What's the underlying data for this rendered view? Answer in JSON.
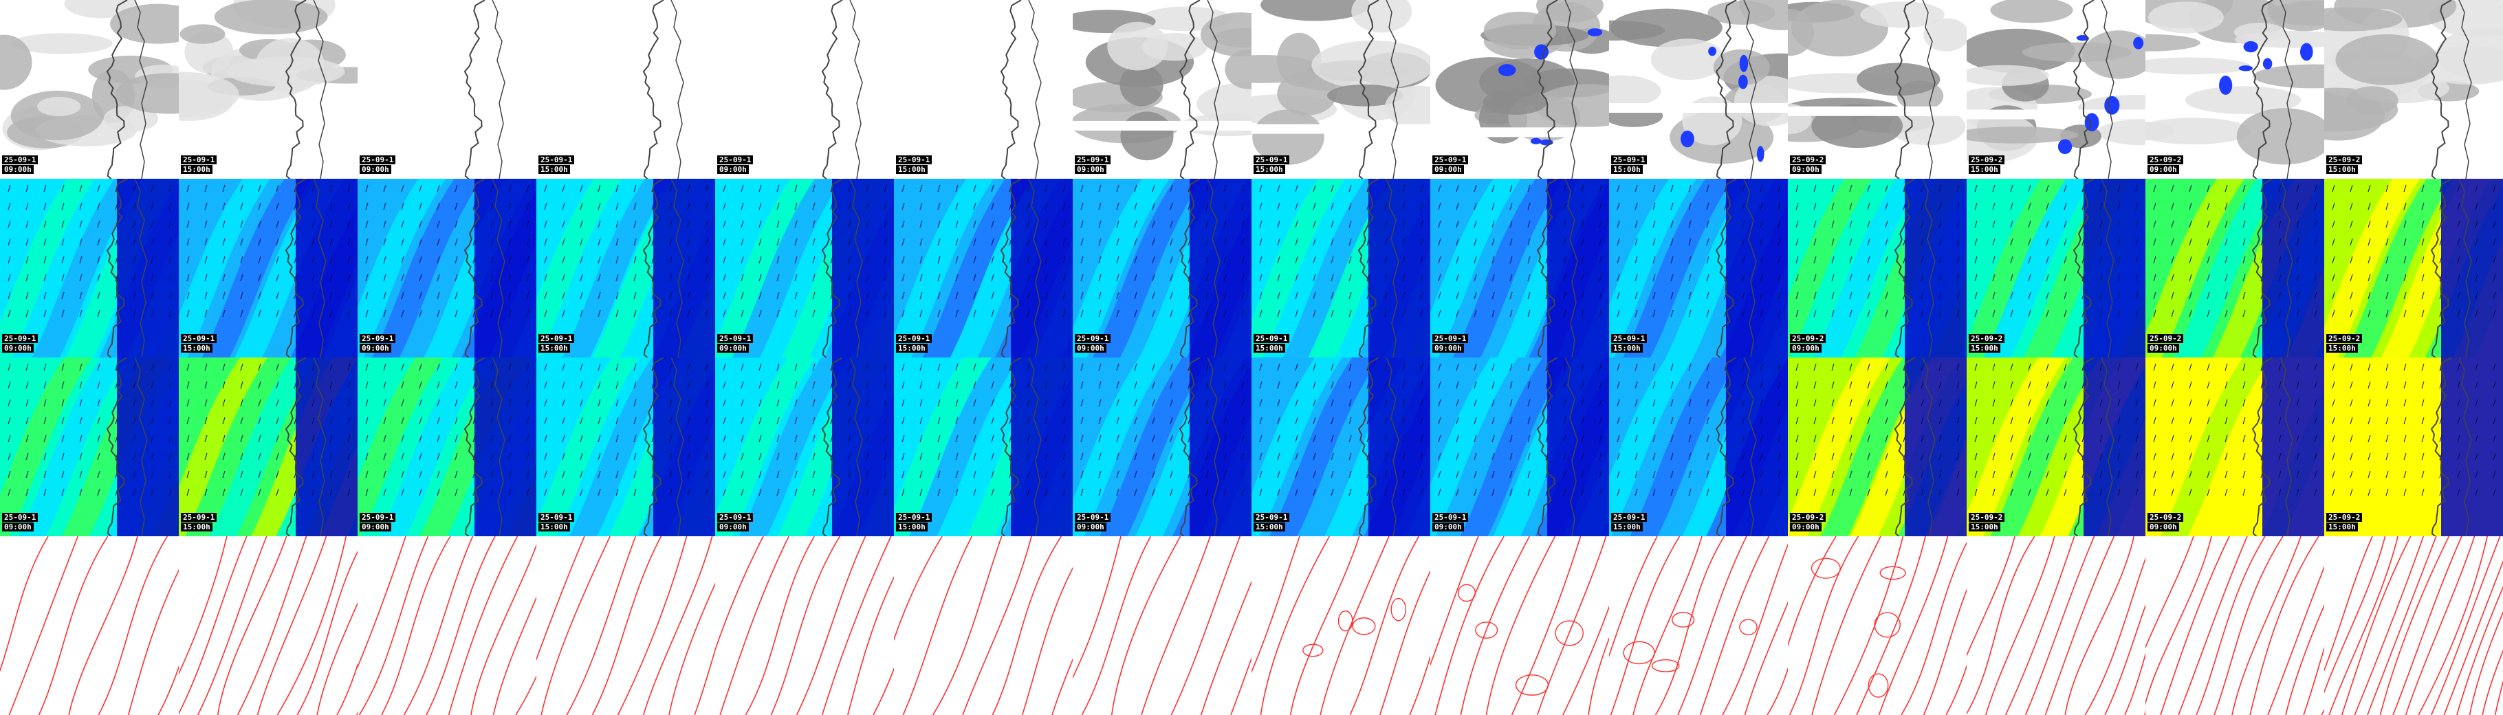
{
  "title": "",
  "rows": [
    {
      "kind": "cloud"
    },
    {
      "kind": "wind-speed"
    },
    {
      "kind": "wind-speed"
    },
    {
      "kind": "pressure"
    }
  ],
  "row_stamps": [
    [
      "25-09-1",
      "09:00h",
      "25-09-1",
      "15:00h",
      "25-09-1",
      "09:00h",
      "25-09-1",
      "15:00h",
      "25-09-1",
      "09:00h",
      "25-09-1",
      "15:00h",
      "25-09-1",
      "09:00h",
      "25-09-1",
      "15:00h",
      "25-09-1",
      "09:00h",
      "25-09-1",
      "15:00h",
      "25-09-2",
      "09:00h",
      "25-09-2",
      "15:00h",
      "25-09-2",
      "09:00h",
      "25-09-2",
      "15:00h"
    ],
    [
      "25-09-1",
      "09:00h",
      "25-09-1",
      "15:00h",
      "25-09-1",
      "09:00h",
      "25-09-1",
      "15:00h",
      "25-09-1",
      "09:00h",
      "25-09-1",
      "15:00h",
      "25-09-1",
      "09:00h",
      "25-09-1",
      "15:00h",
      "25-09-1",
      "09:00h",
      "25-09-1",
      "15:00h",
      "25-09-2",
      "09:00h",
      "25-09-2",
      "15:00h",
      "25-09-2",
      "09:00h",
      "25-09-2",
      "15:00h"
    ],
    [
      "25-09-1",
      "09:00h",
      "25-09-1",
      "15:00h",
      "25-09-1",
      "09:00h",
      "25-09-1",
      "15:00h",
      "25-09-1",
      "09:00h",
      "25-09-1",
      "15:00h",
      "25-09-1",
      "09:00h",
      "25-09-1",
      "15:00h",
      "25-09-1",
      "09:00h",
      "25-09-1",
      "15:00h",
      "25-09-2",
      "09:00h",
      "25-09-2",
      "15:00h",
      "25-09-2",
      "09:00h",
      "25-09-2",
      "15:00h"
    ]
  ],
  "panel_dates": [
    "25-09-1",
    "25-09-1",
    "25-09-1",
    "25-09-1",
    "25-09-1",
    "25-09-1",
    "25-09-1",
    "25-09-1",
    "25-09-1",
    "25-09-1",
    "25-09-2",
    "25-09-2",
    "25-09-2",
    "25-09-2"
  ],
  "panel_times": [
    "09:00h",
    "15:00h",
    "09:00h",
    "15:00h",
    "09:00h",
    "15:00h",
    "09:00h",
    "15:00h",
    "09:00h",
    "15:00h",
    "09:00h",
    "15:00h",
    "09:00h",
    "15:00h"
  ],
  "colors": {
    "background": "#ffffff",
    "coastline": "#444444",
    "cloud_light": "#e2e2e2",
    "cloud_mid": "#b4b4b4",
    "cloud_dark": "#8c8c8c",
    "precip": "#1e3cff",
    "wind_scale": [
      "#0000c8",
      "#0a32e6",
      "#1e78ff",
      "#14b4ff",
      "#00e6ff",
      "#00ffc8",
      "#32ff64",
      "#b4ff00",
      "#ffff00"
    ],
    "isobar": "#ff3030",
    "stamp_bg": "#000000",
    "stamp_text": "#ffffff"
  },
  "wind_levels": [
    [
      2,
      1,
      1,
      2,
      2,
      1,
      1,
      2,
      1,
      1,
      3,
      3,
      4,
      5
    ],
    [
      3,
      4,
      3,
      2,
      2,
      2,
      1,
      1,
      1,
      1,
      5,
      5,
      6,
      7
    ]
  ],
  "cloud_cover": [
    "light",
    "light",
    "none",
    "none",
    "none",
    "none",
    "mid",
    "mid",
    "dark",
    "mid",
    "mid",
    "mid",
    "light",
    "light"
  ],
  "precip_panels": [
    8,
    9,
    11,
    12
  ],
  "isobar_density": [
    6,
    9,
    8,
    7,
    7,
    6,
    6,
    6,
    7,
    8,
    8,
    9,
    10,
    14
  ]
}
